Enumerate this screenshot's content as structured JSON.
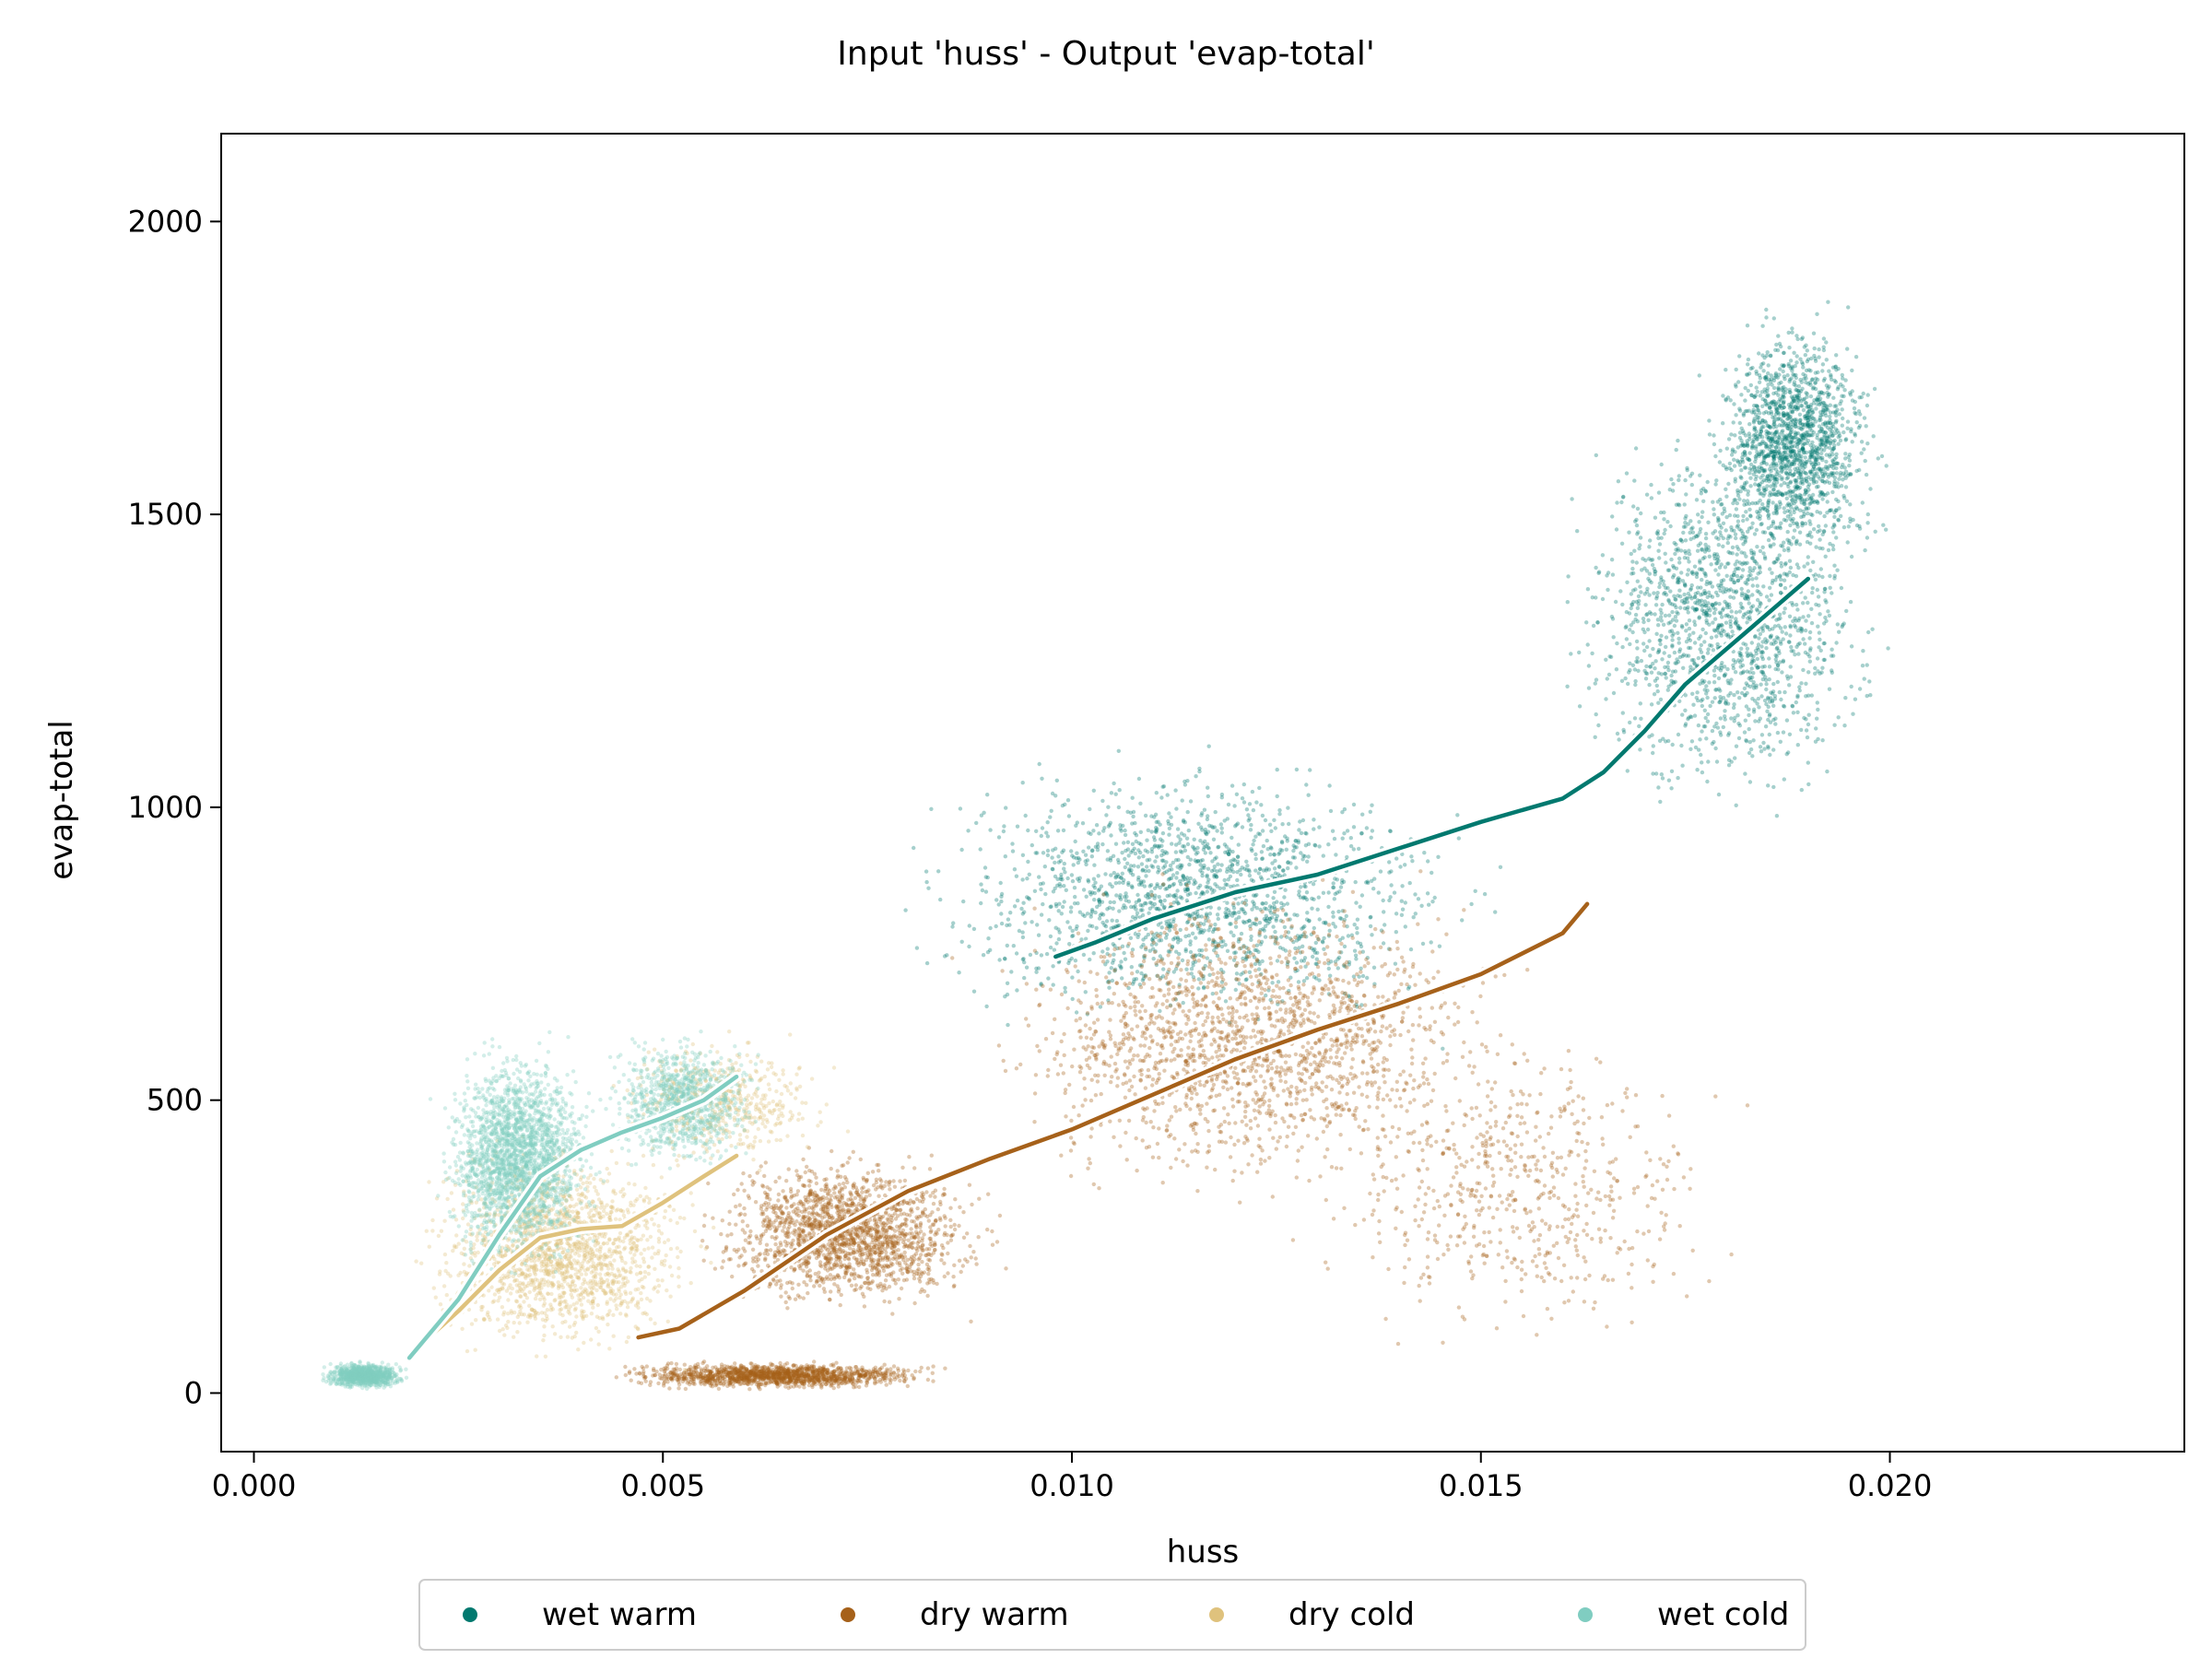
{
  "chart_data": {
    "type": "scatter",
    "title": "Input 'huss' - Output 'evap-total'",
    "xlabel": "huss",
    "ylabel": "evap-total",
    "xlim": [
      -0.0004,
      0.0236
    ],
    "ylim": [
      -100,
      2150
    ],
    "xticks": [
      "0.000",
      "0.005",
      "0.010",
      "0.015",
      "0.020"
    ],
    "yticks": [
      "0",
      "500",
      "1000",
      "1500",
      "2000"
    ],
    "xtick_values": [
      0.0,
      0.005,
      0.01,
      0.015,
      0.02
    ],
    "ytick_values": [
      0,
      500,
      1000,
      1500,
      2000
    ],
    "grid": false,
    "legend_position": "bottom-center",
    "series": [
      {
        "name": "wet warm",
        "color": "#01796f",
        "trend": [
          [
            0.0098,
            745
          ],
          [
            0.0103,
            770
          ],
          [
            0.011,
            810
          ],
          [
            0.012,
            855
          ],
          [
            0.013,
            885
          ],
          [
            0.014,
            930
          ],
          [
            0.015,
            975
          ],
          [
            0.016,
            1015
          ],
          [
            0.0165,
            1060
          ],
          [
            0.017,
            1130
          ],
          [
            0.0175,
            1210
          ],
          [
            0.018,
            1270
          ],
          [
            0.0185,
            1330
          ],
          [
            0.019,
            1390
          ]
        ],
        "clusters": [
          {
            "x": [
              0.007,
              0.016
            ],
            "y": [
              550,
              1150
            ],
            "n": 1700
          },
          {
            "x": [
              0.0155,
              0.0205
            ],
            "y": [
              900,
              1750
            ],
            "n": 1600
          },
          {
            "x": [
              0.0175,
              0.0202
            ],
            "y": [
              1350,
              1900
            ],
            "n": 1500
          }
        ]
      },
      {
        "name": "dry warm",
        "color": "#a6611a",
        "trend": [
          [
            0.0047,
            95
          ],
          [
            0.0052,
            110
          ],
          [
            0.006,
            175
          ],
          [
            0.007,
            270
          ],
          [
            0.008,
            345
          ],
          [
            0.009,
            400
          ],
          [
            0.01,
            450
          ],
          [
            0.011,
            510
          ],
          [
            0.012,
            570
          ],
          [
            0.013,
            620
          ],
          [
            0.014,
            665
          ],
          [
            0.015,
            715
          ],
          [
            0.016,
            785
          ],
          [
            0.0163,
            835
          ]
        ],
        "clusters": [
          {
            "x": [
              0.0038,
              0.009
            ],
            "y": [
              0,
              60
            ],
            "n": 1400
          },
          {
            "x": [
              0.005,
              0.0095
            ],
            "y": [
              100,
              450
            ],
            "n": 1800
          },
          {
            "x": [
              0.008,
              0.0165
            ],
            "y": [
              250,
              950
            ],
            "n": 1800
          },
          {
            "x": [
              0.012,
              0.019
            ],
            "y": [
              0,
              700
            ],
            "n": 600
          }
        ]
      },
      {
        "name": "dry cold",
        "color": "#dfc27d",
        "trend": [
          [
            0.0019,
            65
          ],
          [
            0.0025,
            140
          ],
          [
            0.003,
            210
          ],
          [
            0.0035,
            265
          ],
          [
            0.004,
            280
          ],
          [
            0.0045,
            285
          ],
          [
            0.005,
            325
          ],
          [
            0.0055,
            370
          ],
          [
            0.0059,
            405
          ]
        ],
        "clusters": [
          {
            "x": [
              0.0015,
              0.006
            ],
            "y": [
              10,
              480
            ],
            "n": 1700
          },
          {
            "x": [
              0.004,
              0.0075
            ],
            "y": [
              350,
              650
            ],
            "n": 500
          }
        ]
      },
      {
        "name": "wet cold",
        "color": "#80cdc1",
        "trend": [
          [
            0.0019,
            60
          ],
          [
            0.0025,
            160
          ],
          [
            0.003,
            270
          ],
          [
            0.0035,
            370
          ],
          [
            0.004,
            415
          ],
          [
            0.0045,
            445
          ],
          [
            0.005,
            470
          ],
          [
            0.0055,
            500
          ],
          [
            0.0059,
            540
          ]
        ],
        "clusters": [
          {
            "x": [
              0.0007,
              0.002
            ],
            "y": [
              0,
              60
            ],
            "n": 900
          },
          {
            "x": [
              0.002,
              0.0045
            ],
            "y": [
              150,
              650
            ],
            "n": 2200
          },
          {
            "x": [
              0.004,
              0.0065
            ],
            "y": [
              350,
              650
            ],
            "n": 900
          }
        ]
      }
    ]
  }
}
